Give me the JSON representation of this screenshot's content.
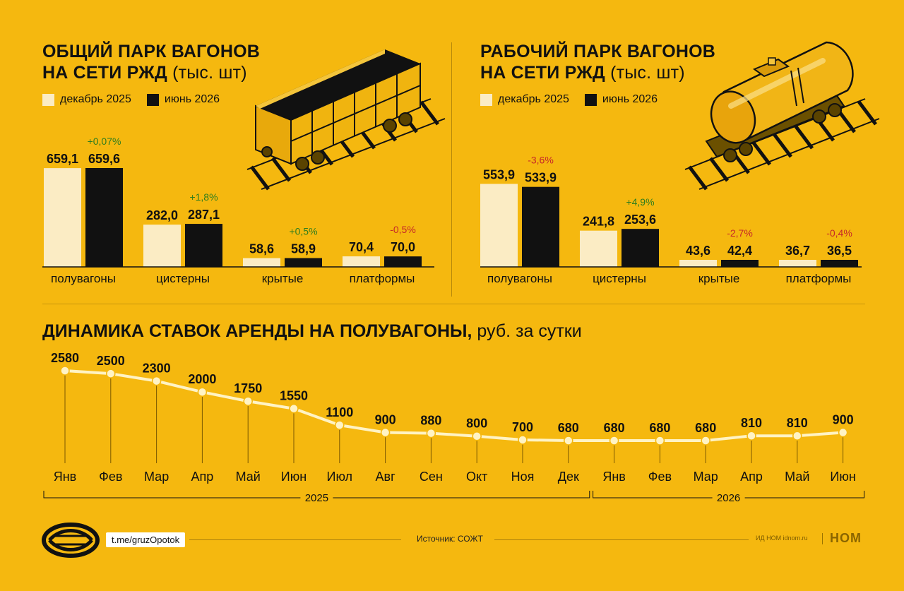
{
  "panels": [
    {
      "title_line1": "ОБЩИЙ ПАРК ВАГОНОВ",
      "title_line2": "НА СЕТИ РЖД",
      "unit": " (тыс. шт)",
      "legend": [
        "декабрь 2025",
        "июнь 2026"
      ]
    },
    {
      "title_line1": "РАБОЧИЙ ПАРК ВАГОНОВ",
      "title_line2": "НА СЕТИ РЖД",
      "unit": " (тыс. шт)",
      "legend": [
        "декабрь 2025",
        "июнь 2026"
      ]
    }
  ],
  "line_chart": {
    "title": "ДИНАМИКА СТАВОК АРЕНДЫ НА ПОЛУВАГОНЫ,",
    "unit": " руб. за сутки"
  },
  "chart_data": [
    {
      "type": "bar",
      "categories": [
        "полувагоны",
        "цистерны",
        "крытые",
        "платформы"
      ],
      "series": [
        {
          "name": "декабрь 2025",
          "values": [
            659.1,
            282.0,
            58.6,
            70.4
          ],
          "labels": [
            "659,1",
            "282,0",
            "58,6",
            "70,4"
          ]
        },
        {
          "name": "июнь 2026",
          "values": [
            659.6,
            287.1,
            58.9,
            70.0
          ],
          "labels": [
            "659,6",
            "287,1",
            "58,9",
            "70,0"
          ]
        }
      ],
      "changes": [
        "+0,07%",
        "+1,8%",
        "+0,5%",
        "-0,5%"
      ],
      "ylim": [
        0,
        659.6
      ]
    },
    {
      "type": "bar",
      "categories": [
        "полувагоны",
        "цистерны",
        "крытые",
        "платформы"
      ],
      "series": [
        {
          "name": "декабрь 2025",
          "values": [
            553.9,
            241.8,
            43.6,
            36.7
          ],
          "labels": [
            "553,9",
            "241,8",
            "43,6",
            "36,7"
          ]
        },
        {
          "name": "июнь 2026",
          "values": [
            533.9,
            253.6,
            42.4,
            36.5
          ],
          "labels": [
            "533,9",
            "253,6",
            "42,4",
            "36,5"
          ]
        }
      ],
      "changes": [
        "-3,6%",
        "+4,9%",
        "-2,7%",
        "-0,4%"
      ],
      "ylim": [
        0,
        659.6
      ]
    },
    {
      "type": "line",
      "x": [
        "Янв",
        "Фев",
        "Мар",
        "Апр",
        "Май",
        "Июн",
        "Июл",
        "Авг",
        "Сен",
        "Окт",
        "Ноя",
        "Дек",
        "Янв",
        "Фев",
        "Мар",
        "Апр",
        "Май",
        "Июн"
      ],
      "values": [
        2580,
        2500,
        2300,
        2000,
        1750,
        1550,
        1100,
        900,
        880,
        800,
        700,
        680,
        680,
        680,
        680,
        810,
        810,
        900
      ],
      "years": [
        {
          "label": "2025",
          "span": [
            0,
            11
          ]
        },
        {
          "label": "2026",
          "span": [
            12,
            17
          ]
        }
      ],
      "ylim": [
        680,
        2580
      ]
    }
  ],
  "colors": {
    "background": "#f5b80f",
    "bar_dec": "#fbecc4",
    "bar_jun": "#111111",
    "positive": "#2e7d1e",
    "negative": "#c62828",
    "line": "#fff3c4"
  },
  "footer": {
    "link": "t.me/gruzOpotok",
    "source": "Источник: СОЖТ",
    "publisher": "ИД НОМ idnom.ru",
    "brand": "НОМ"
  }
}
